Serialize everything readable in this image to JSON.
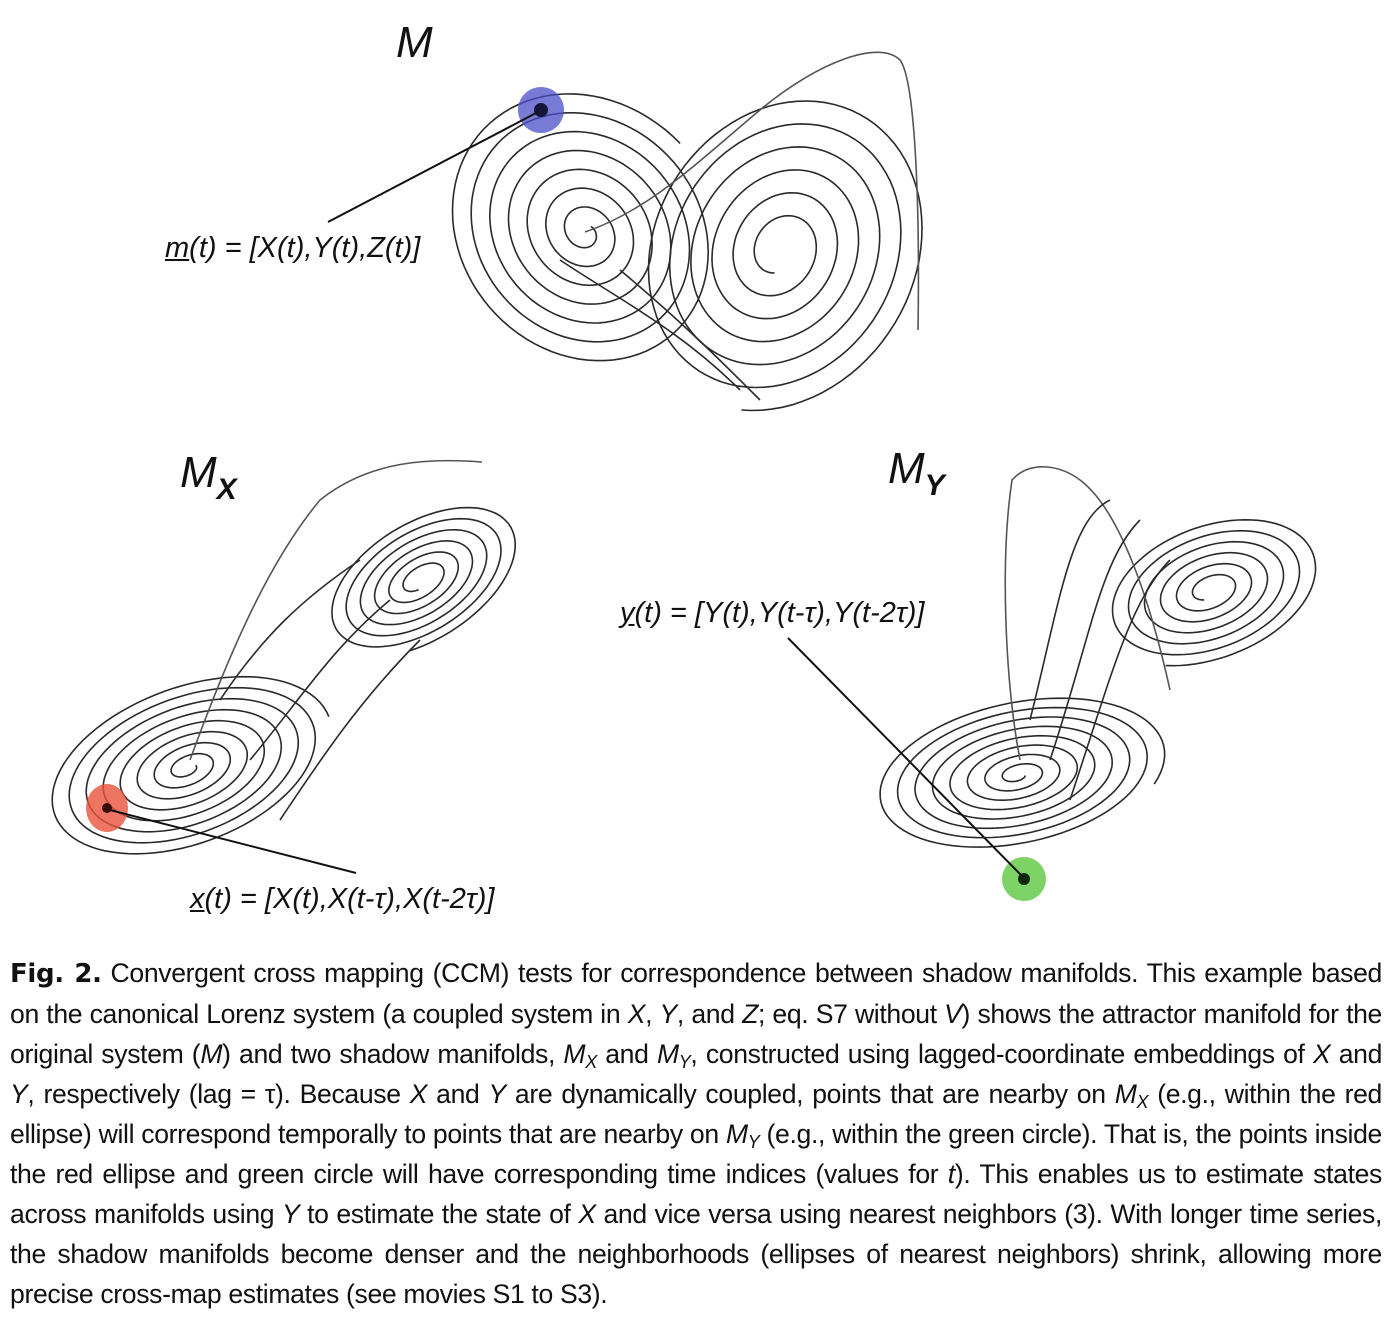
{
  "panels": {
    "M": {
      "title": "M",
      "label_prefix": "m",
      "label_rest": "(t) = [X(t),Y(t),Z(t)]",
      "marker_color": "#4a4fc8"
    },
    "MX": {
      "title": "M",
      "title_sub": "X",
      "label_prefix": "x",
      "label_rest": "(t) = [X(t),X(t-τ),X(t-2τ)]",
      "marker_color": "#e8523a"
    },
    "MY": {
      "title": "M",
      "title_sub": "Y",
      "label_prefix": "y",
      "label_rest": "(t) = [Y(t),Y(t-τ),Y(t-2τ)]",
      "marker_color": "#5cc840"
    }
  },
  "caption": {
    "fig_label": "Fig. 2.",
    "text": "Convergent cross mapping (CCM) tests for correspondence between shadow manifolds. This example based on the canonical Lorenz system (a coupled system in X, Y, and Z; eq. S7 without V) shows the attractor manifold for the original system (M) and two shadow manifolds, MX and MY, constructed using lagged-coordinate embeddings of X and Y, respectively (lag = τ). Because X and Y are dynamically coupled, points that are nearby on MX (e.g., within the red ellipse) will correspond temporally to points that are nearby on MY (e.g., within the green circle). That is, the points inside the red ellipse and green circle will have corresponding time indices (values for t). This enables us to estimate states across manifolds using Y to estimate the state of X and vice versa using nearest neighbors (3). With longer time series, the shadow manifolds become denser and the neighborhoods (ellipses of nearest neighbors) shrink, allowing more precise cross-map estimates (see movies S1 to S3)."
  }
}
